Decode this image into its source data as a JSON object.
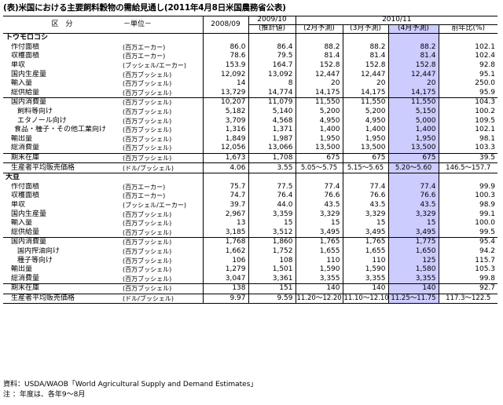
{
  "title": "(表)米国における主要飼料穀物の需給見通し(2011年4月8日米国農務省公表)",
  "header": {
    "category": "区　分",
    "unit": "－単位－",
    "years": [
      "2008/09",
      "2009/10",
      "2010/11"
    ],
    "subcols": [
      "(推計値)",
      "(2月予測)",
      "(3月予測)",
      "(4月予測)",
      "前年比(%)"
    ]
  },
  "sections": [
    {
      "name": "トウモロコシ",
      "rows": [
        {
          "label": "作付面積",
          "unit": "(百万エーカー)",
          "values": [
            "86.0",
            "86.4",
            "88.2",
            "88.2",
            "88.2",
            "102.1"
          ]
        },
        {
          "label": "収穫面積",
          "unit": "(百万エーカー)",
          "values": [
            "78.6",
            "79.5",
            "81.4",
            "81.4",
            "81.4",
            "102.4"
          ]
        },
        {
          "label": "単収",
          "unit": "(ブッシェル/エーカー)",
          "values": [
            "153.9",
            "164.7",
            "152.8",
            "152.8",
            "152.8",
            "92.8"
          ]
        },
        {
          "label": "国内生産量",
          "unit": "(百万ブッシェル)",
          "values": [
            "12,092",
            "13,092",
            "12,447",
            "12,447",
            "12,447",
            "95.1"
          ]
        },
        {
          "label": "輸入量",
          "unit": "(百万ブッシェル)",
          "values": [
            "14",
            "8",
            "20",
            "20",
            "20",
            "250.0"
          ]
        },
        {
          "label": "総供給量",
          "unit": "(百万ブッシェル)",
          "values": [
            "13,729",
            "14,774",
            "14,175",
            "14,175",
            "14,175",
            "95.9"
          ]
        },
        {
          "label": "国内消費量",
          "unit": "(百万ブッシェル)",
          "values": [
            "10,207",
            "11,079",
            "11,550",
            "11,550",
            "11,550",
            "104.3"
          ]
        },
        {
          "label": "飼料等向け",
          "unit": "(百万ブッシェル)",
          "values": [
            "5,182",
            "5,140",
            "5,200",
            "5,200",
            "5,150",
            "100.2"
          ]
        },
        {
          "label": "エタノール向け",
          "unit": "(百万ブッシェル)",
          "values": [
            "3,709",
            "4,568",
            "4,950",
            "4,950",
            "5,000",
            "109.5"
          ]
        },
        {
          "label": "食品・種子・その他工業向け",
          "unit": "(百万ブッシェル)",
          "values": [
            "1,316",
            "1,371",
            "1,400",
            "1,400",
            "1,400",
            "102.1"
          ]
        },
        {
          "label": "輸出量",
          "unit": "(百万ブッシェル)",
          "values": [
            "1,849",
            "1,987",
            "1,950",
            "1,950",
            "1,950",
            "98.1"
          ]
        },
        {
          "label": "総消費量",
          "unit": "(百万ブッシェル)",
          "values": [
            "12,056",
            "13,066",
            "13,500",
            "13,500",
            "13,500",
            "103.3"
          ]
        },
        {
          "label": "期末在庫",
          "unit": "(百万ブッシェル)",
          "values": [
            "1,673",
            "1,708",
            "675",
            "675",
            "675",
            "39.5"
          ]
        },
        {
          "label": "生産者平均販売価格",
          "unit": "(ドル/ブッシェル)",
          "values": [
            "4.06",
            "3.55",
            "5.05～5.75",
            "5.15～5.65",
            "5.20～5.60",
            "146.5～157.7"
          ]
        }
      ]
    },
    {
      "name": "大豆",
      "rows": [
        {
          "label": "作付面積",
          "unit": "(百万エーカー)",
          "values": [
            "75.7",
            "77.5",
            "77.4",
            "77.4",
            "77.4",
            "99.9"
          ]
        },
        {
          "label": "収穫面積",
          "unit": "(百万エーカー)",
          "values": [
            "74.7",
            "76.4",
            "76.6",
            "76.6",
            "76.6",
            "100.3"
          ]
        },
        {
          "label": "単収",
          "unit": "(ブッシェル/エーカー)",
          "values": [
            "39.7",
            "44.0",
            "43.5",
            "43.5",
            "43.5",
            "98.9"
          ]
        },
        {
          "label": "国内生産量",
          "unit": "(百万ブッシェル)",
          "values": [
            "2,967",
            "3,359",
            "3,329",
            "3,329",
            "3,329",
            "99.1"
          ]
        },
        {
          "label": "輸入量",
          "unit": "(百万ブッシェル)",
          "values": [
            "13",
            "15",
            "15",
            "15",
            "15",
            "100.0"
          ]
        },
        {
          "label": "総供給量",
          "unit": "(百万ブッシェル)",
          "values": [
            "3,185",
            "3,512",
            "3,495",
            "3,495",
            "3,495",
            "99.5"
          ]
        },
        {
          "label": "国内消費量",
          "unit": "(百万ブッシェル)",
          "values": [
            "1,768",
            "1,860",
            "1,765",
            "1,765",
            "1,775",
            "95.4"
          ]
        },
        {
          "label": "国内搾油向け",
          "unit": "(百万ブッシェル)",
          "values": [
            "1,662",
            "1,752",
            "1,655",
            "1,655",
            "1,650",
            "94.2"
          ]
        },
        {
          "label": "種子等向け",
          "unit": "(百万ブッシェル)",
          "values": [
            "106",
            "108",
            "110",
            "110",
            "125",
            "115.7"
          ]
        },
        {
          "label": "輸出量",
          "unit": "(百万ブッシェル)",
          "values": [
            "1,279",
            "1,501",
            "1,590",
            "1,590",
            "1,580",
            "105.3"
          ]
        },
        {
          "label": "総消費量",
          "unit": "(百万ブッシェル)",
          "values": [
            "3,047",
            "3,361",
            "3,355",
            "3,355",
            "3,355",
            "99.8"
          ]
        },
        {
          "label": "期末在庫",
          "unit": "(百万ブッシェル)",
          "values": [
            "138",
            "151",
            "140",
            "140",
            "140",
            "92.7"
          ]
        },
        {
          "label": "生産者平均販売価格",
          "unit": "(ドル/ブッシェル)",
          "values": [
            "9.97",
            "9.59",
            "11.20～12.20",
            "11.10～12.10",
            "11.25～11.75",
            "117.3～122.5"
          ]
        }
      ]
    }
  ],
  "notes": {
    "source": "資料：USDA/WAOB「World Agricultural Supply and Demand Estimates」",
    "note": "注 ：年度は、各年9～8月"
  },
  "colors": {
    "highlight": "#ccccff",
    "border": "#000000"
  }
}
